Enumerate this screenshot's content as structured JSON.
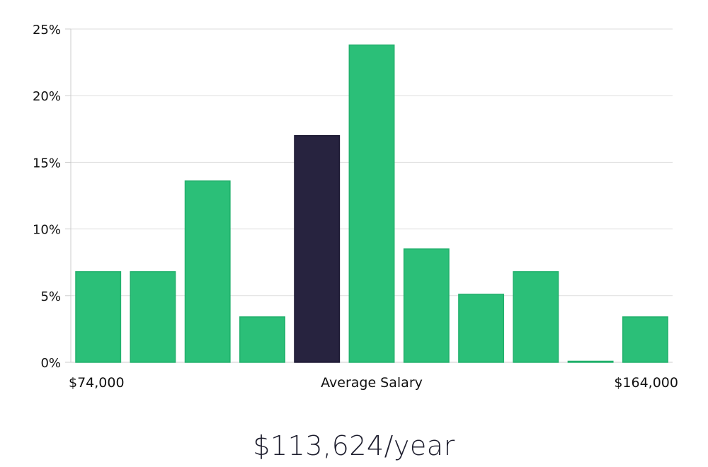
{
  "chart_data": {
    "type": "bar",
    "y_ticks": [
      "0%",
      "5%",
      "10%",
      "15%",
      "20%",
      "25%"
    ],
    "ylim": [
      0,
      25
    ],
    "grid": true,
    "x_labels": {
      "left": "$74,000",
      "center": "Average Salary",
      "right": "$164,000"
    },
    "values": [
      6.8,
      6.8,
      13.6,
      3.4,
      17.0,
      23.8,
      8.5,
      5.1,
      6.8,
      0,
      3.4
    ],
    "highlight_index": 4,
    "colors": {
      "bar": "#2bbf78",
      "highlight": "#27233f",
      "grid": "#dddddd",
      "axis": "#cccccc"
    }
  },
  "summary": {
    "salary_text": "$113,624/year"
  }
}
